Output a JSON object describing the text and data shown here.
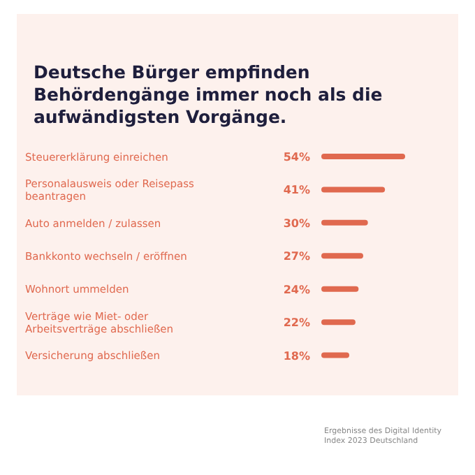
{
  "chart_data": {
    "type": "bar",
    "orientation": "horizontal",
    "title": "Deutsche Bürger empfinden Behördengänge immer noch als die aufwändigsten Vorgänge.",
    "categories": [
      "Steuererklärung einreichen",
      "Personalausweis oder Reisepass beantragen",
      "Auto anmelden / zulassen",
      "Bankkonto wechseln / eröffnen",
      "Wohnort ummelden",
      "Verträge wie Miet- oder Arbeitsverträge abschließen",
      "Versicherung abschließen"
    ],
    "values": [
      54,
      41,
      30,
      27,
      24,
      22,
      18
    ],
    "color": "#e0694f",
    "value_labels": [
      "54%",
      "41%",
      "30%",
      "27%",
      "24%",
      "22%",
      "18%"
    ],
    "annotations": [
      "Ergebnisse des Digital Identity Index 2023 Deutschland"
    ]
  }
}
